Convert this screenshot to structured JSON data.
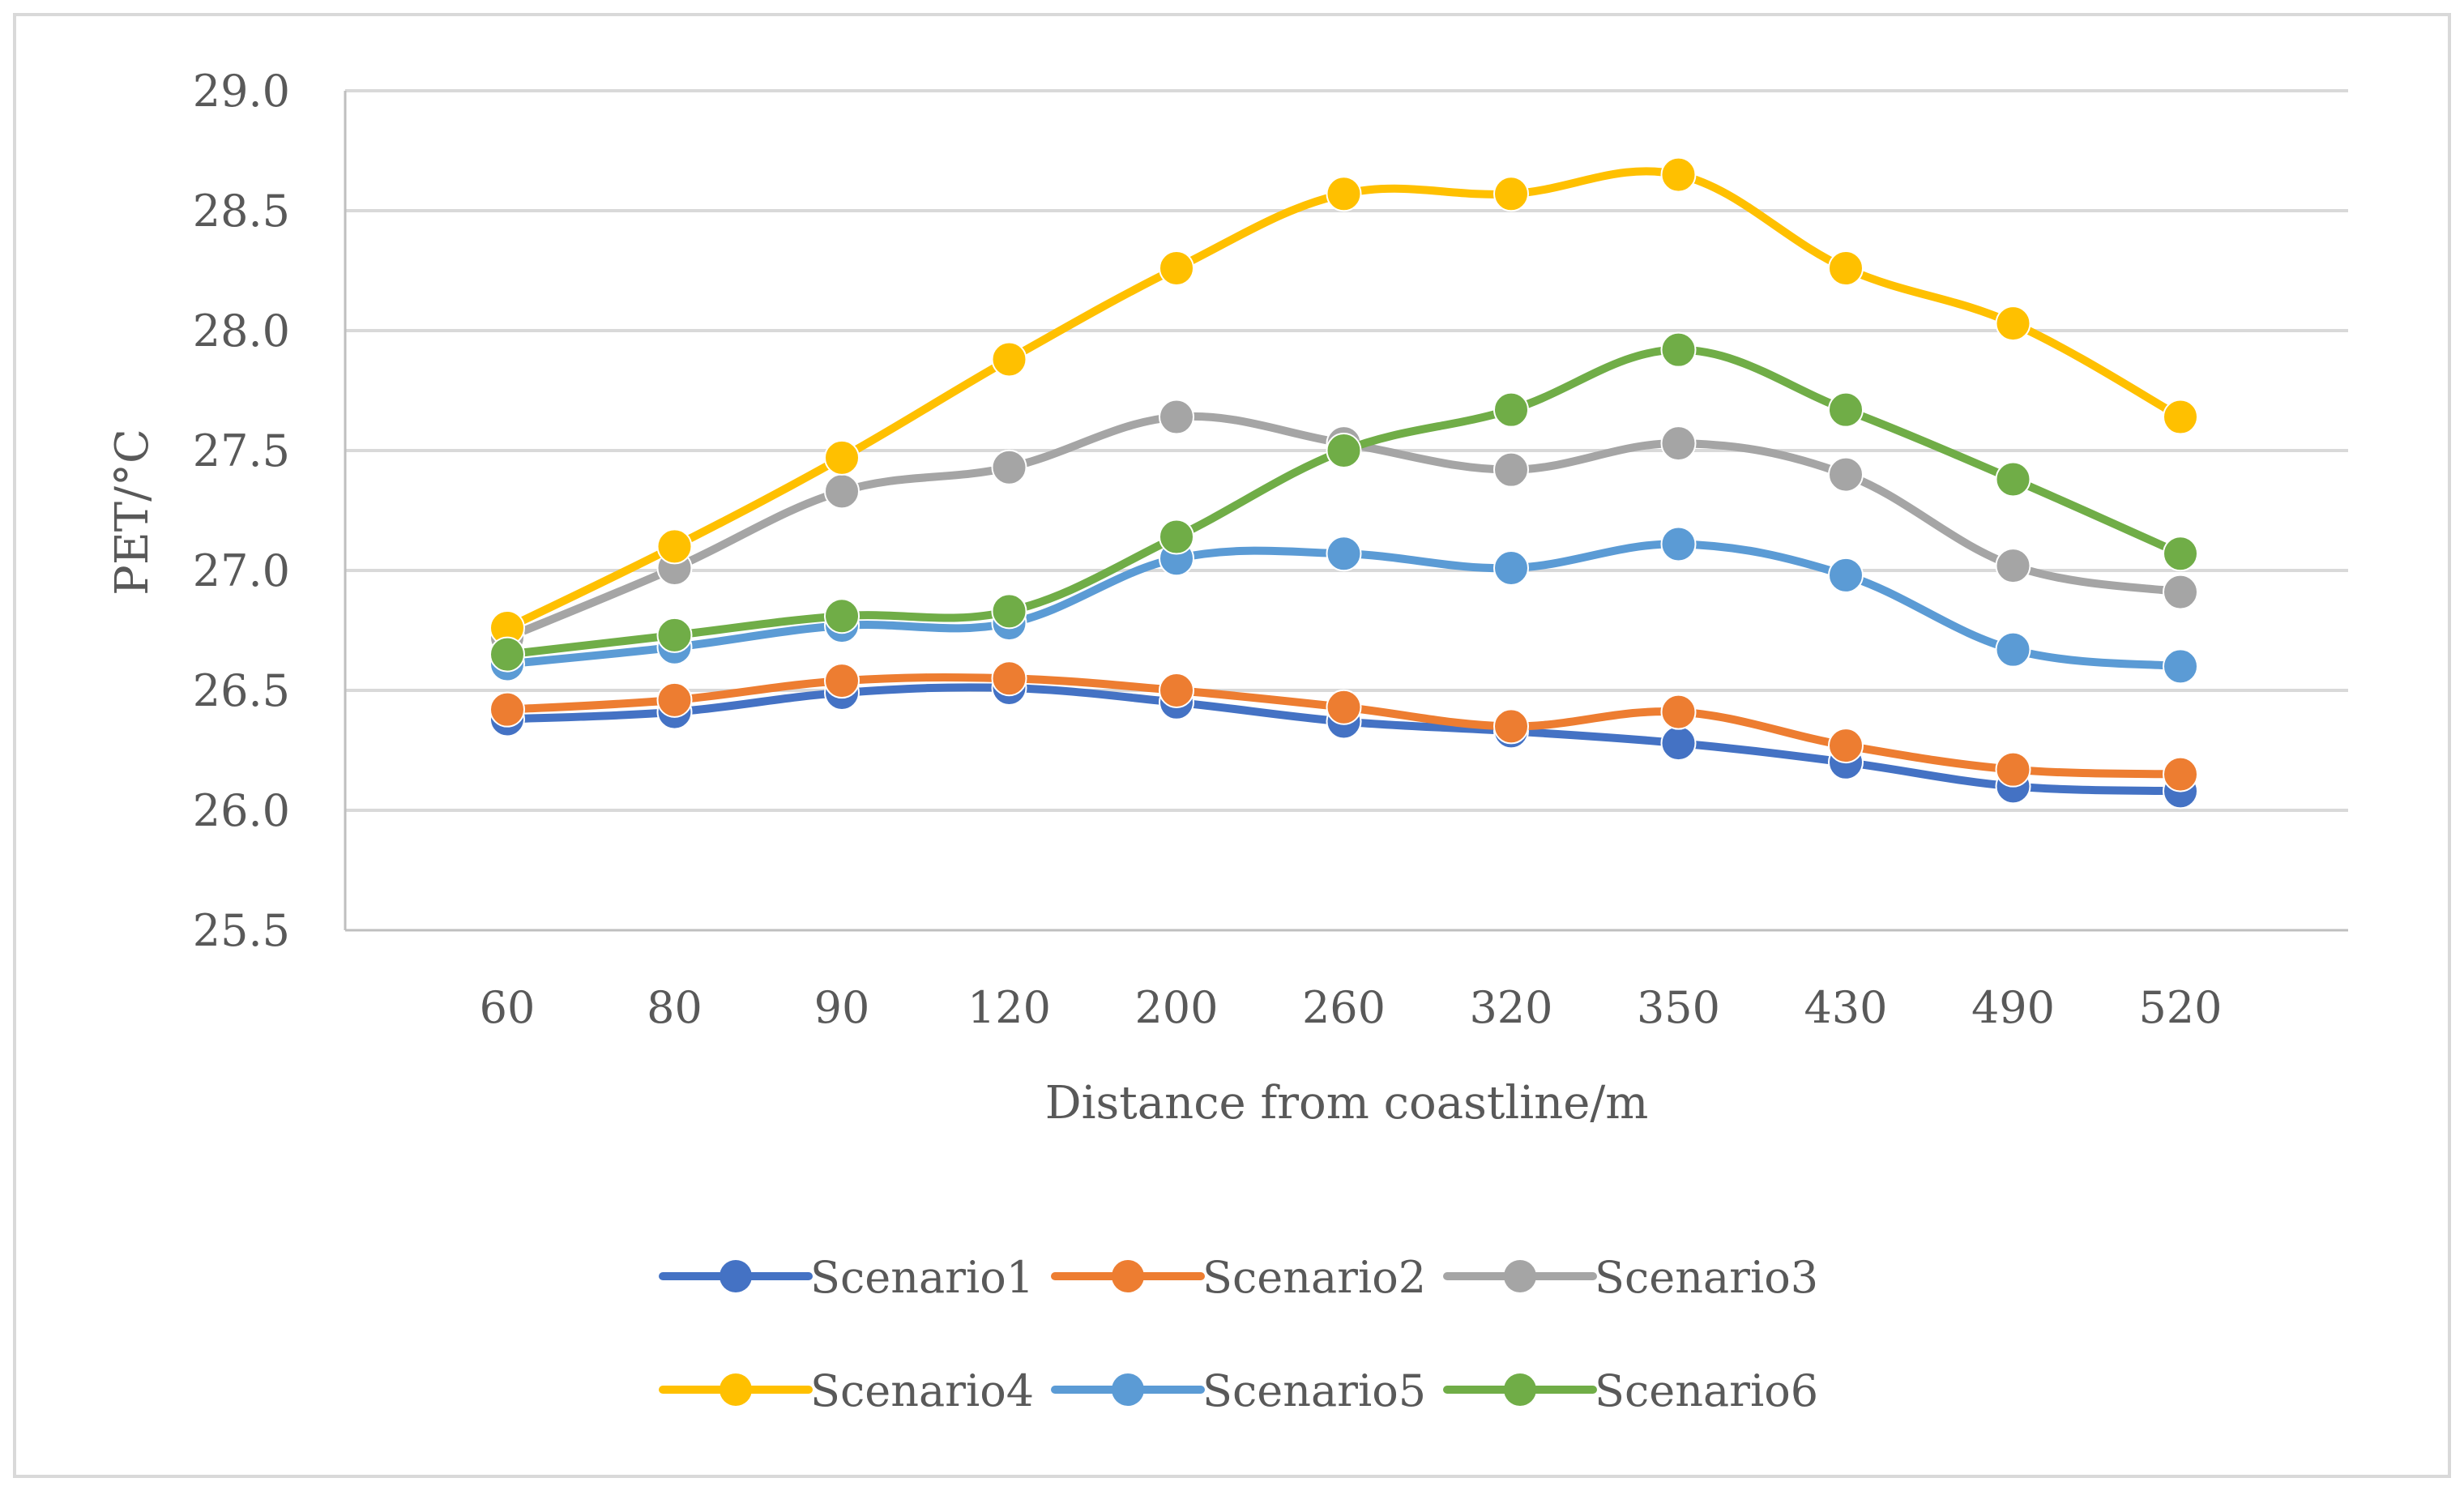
{
  "chart_data": {
    "type": "line",
    "title": "",
    "xlabel": "Distance from coastline/m",
    "ylabel": "PET/°C",
    "categories": [
      "60",
      "80",
      "90",
      "120",
      "200",
      "260",
      "320",
      "350",
      "430",
      "490",
      "520"
    ],
    "ylim": [
      25.5,
      29.0
    ],
    "yticks": [
      "25.5",
      "26.0",
      "26.5",
      "27.0",
      "27.5",
      "28.0",
      "28.5",
      "29.0"
    ],
    "grid": true,
    "legend": "bottom",
    "series": [
      {
        "name": "Scenario1",
        "color": "#4472C4",
        "values": [
          26.38,
          26.41,
          26.49,
          26.51,
          26.45,
          26.37,
          26.33,
          26.28,
          26.2,
          26.1,
          26.08
        ]
      },
      {
        "name": "Scenario2",
        "color": "#ED7D31",
        "values": [
          26.42,
          26.46,
          26.54,
          26.55,
          26.5,
          26.43,
          26.35,
          26.41,
          26.27,
          26.17,
          26.15
        ]
      },
      {
        "name": "Scenario3",
        "color": "#A5A5A5",
        "values": [
          26.72,
          27.01,
          27.33,
          27.43,
          27.64,
          27.53,
          27.42,
          27.53,
          27.4,
          27.02,
          26.91
        ]
      },
      {
        "name": "Scenario4",
        "color": "#FFC000",
        "values": [
          26.76,
          27.1,
          27.47,
          27.88,
          28.26,
          28.57,
          28.57,
          28.65,
          28.26,
          28.03,
          27.64
        ]
      },
      {
        "name": "Scenario5",
        "color": "#5B9BD5",
        "values": [
          26.61,
          26.68,
          26.77,
          26.78,
          27.05,
          27.07,
          27.01,
          27.11,
          26.98,
          26.67,
          26.6
        ]
      },
      {
        "name": "Scenario6",
        "color": "#70AD47",
        "values": [
          26.65,
          26.73,
          26.81,
          26.83,
          27.14,
          27.5,
          27.67,
          27.92,
          27.67,
          27.38,
          27.07
        ]
      }
    ]
  }
}
